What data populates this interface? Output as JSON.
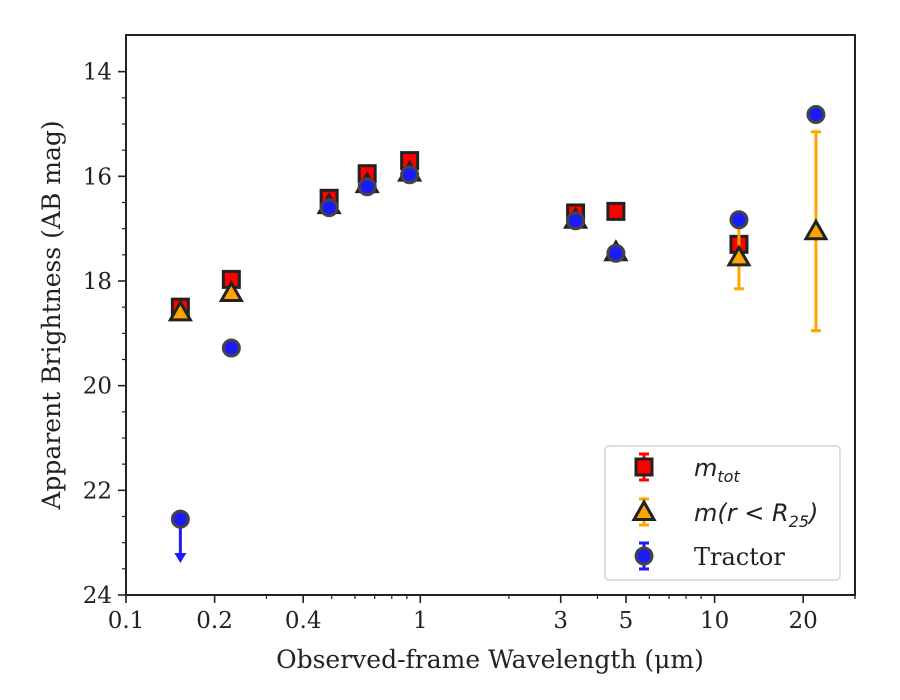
{
  "chart_data": {
    "type": "scatter",
    "xlabel": "Observed-frame Wavelength (μm)",
    "ylabel": "Apparent Brightness (AB mag)",
    "xscale": "log",
    "xlim": [
      0.1,
      30
    ],
    "ylim": [
      24,
      13.3
    ],
    "y_inverted": true,
    "x_ticks": [
      0.1,
      0.2,
      0.4,
      1,
      3,
      5,
      10,
      20
    ],
    "x_tick_labels": [
      "0.1",
      "0.2",
      "0.4",
      "1",
      "3",
      "5",
      "10",
      "20"
    ],
    "y_ticks": [
      14,
      16,
      18,
      20,
      22,
      24
    ],
    "y_tick_labels": [
      "14",
      "16",
      "18",
      "20",
      "22",
      "24"
    ],
    "grid": false,
    "legend_position": "bottom-right",
    "series": [
      {
        "name": "m_tot",
        "legend_main": "m",
        "legend_sub": "tot",
        "marker": "square",
        "color": "#ff0000",
        "edgecolor": "#222222",
        "points": [
          {
            "x": 0.153,
            "y": 18.5,
            "err": 0.07
          },
          {
            "x": 0.228,
            "y": 17.97,
            "err": 0.07
          },
          {
            "x": 0.49,
            "y": 16.42,
            "err": 0.05
          },
          {
            "x": 0.66,
            "y": 15.95,
            "err": 0.05
          },
          {
            "x": 0.92,
            "y": 15.7,
            "err": 0.05
          },
          {
            "x": 3.37,
            "y": 16.7,
            "err": 0.05
          },
          {
            "x": 4.62,
            "y": 16.67,
            "err": 0.05
          },
          {
            "x": 12.1,
            "y": 17.3,
            "err": 0.08
          }
        ]
      },
      {
        "name": "m(r < R25)",
        "legend_main": "m(r < R",
        "legend_sub": "25",
        "legend_tail": ")",
        "marker": "triangle",
        "color": "#ffa500",
        "edgecolor": "#222222",
        "points": [
          {
            "x": 0.153,
            "y": 18.6,
            "err": 0.07
          },
          {
            "x": 0.228,
            "y": 18.23,
            "err": 0.07
          },
          {
            "x": 0.49,
            "y": 16.55,
            "err": 0.05
          },
          {
            "x": 0.66,
            "y": 16.15,
            "err": 0.05
          },
          {
            "x": 0.92,
            "y": 15.93,
            "err": 0.05
          },
          {
            "x": 3.37,
            "y": 16.83,
            "err": 0.05
          },
          {
            "x": 4.62,
            "y": 17.45,
            "err": 0.05
          },
          {
            "x": 12.1,
            "y": 17.55,
            "err": 0.6
          },
          {
            "x": 22.1,
            "y": 17.05,
            "err": 1.9
          }
        ]
      },
      {
        "name": "Tractor",
        "marker": "circle",
        "color": "#1a1aff",
        "edgecolor": "#444444",
        "points": [
          {
            "x": 0.153,
            "y": 22.55,
            "err": 0,
            "upper_limit": true
          },
          {
            "x": 0.228,
            "y": 19.28,
            "err": 0
          },
          {
            "x": 0.49,
            "y": 16.6,
            "err": 0
          },
          {
            "x": 0.66,
            "y": 16.2,
            "err": 0
          },
          {
            "x": 0.92,
            "y": 15.97,
            "err": 0
          },
          {
            "x": 3.37,
            "y": 16.85,
            "err": 0
          },
          {
            "x": 4.62,
            "y": 17.47,
            "err": 0
          },
          {
            "x": 12.1,
            "y": 16.83,
            "err": 0
          },
          {
            "x": 22.1,
            "y": 14.82,
            "err": 0
          }
        ]
      }
    ]
  }
}
